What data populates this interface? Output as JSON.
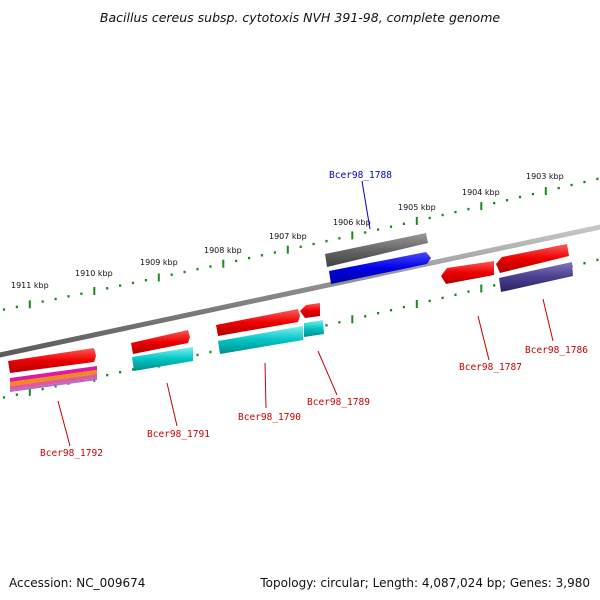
{
  "title": "Bacillus cereus subsp. cytotoxis NVH 391-98, complete genome",
  "footer": {
    "accession": "Accession: NC_009674",
    "summary": "Topology: circular; Length: 4,087,024 bp; Genes: 3,980"
  },
  "ruler": {
    "labels": [
      "1911 kbp",
      "1910 kbp",
      "1909 kbp",
      "1908 kbp",
      "1907 kbp",
      "1906 kbp",
      "1905 kbp",
      "1904 kbp",
      "1903 kbp"
    ],
    "tick_color": "#1a8a1a"
  },
  "genes": [
    {
      "label": "Bcer98_1792",
      "label_color": "#cc0000"
    },
    {
      "label": "Bcer98_1791",
      "label_color": "#cc0000"
    },
    {
      "label": "Bcer98_1790",
      "label_color": "#cc0000"
    },
    {
      "label": "Bcer98_1789",
      "label_color": "#cc0000"
    },
    {
      "label": "Bcer98_1788",
      "label_color": "#0000cc"
    },
    {
      "label": "Bcer98_1787",
      "label_color": "#cc0000"
    },
    {
      "label": "Bcer98_1786",
      "label_color": "#cc0000"
    }
  ],
  "colors": {
    "gene": "#ff0000",
    "cds": "#00c8c8",
    "selected_gene": "#666666",
    "selected_cds": "#0000ee",
    "misc_feature": "#4a3f8f",
    "backbone": "#8c8c8c"
  }
}
